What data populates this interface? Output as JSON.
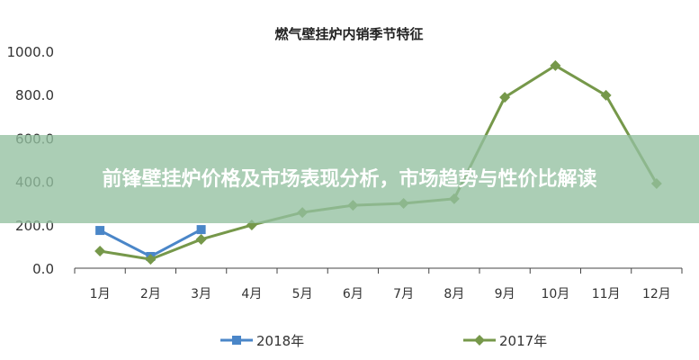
{
  "chart_data": {
    "type": "line",
    "title": "燃气壁挂炉内销季节特征",
    "categories": [
      "1月",
      "2月",
      "3月",
      "4月",
      "5月",
      "6月",
      "7月",
      "8月",
      "9月",
      "10月",
      "11月",
      "12月"
    ],
    "series": [
      {
        "name": "2018年",
        "color": "#4a86c8",
        "marker": "square",
        "values": [
          174,
          54,
          178,
          null,
          null,
          null,
          null,
          null,
          null,
          null,
          null,
          null
        ]
      },
      {
        "name": "2017年",
        "color": "#76984a",
        "marker": "diamond",
        "values": [
          79,
          41,
          133,
          199,
          257,
          290,
          299,
          320,
          788,
          934,
          797,
          390
        ]
      }
    ],
    "yticks": [
      "0.0",
      "200.0",
      "400.0",
      "600.0",
      "800.0",
      "1000.0"
    ],
    "ylim": [
      0,
      1000
    ],
    "grid": false,
    "legend": "bottom"
  },
  "banner": {
    "text": "前锋壁挂炉价格及市场表现分析，市场趋势与性价比解读"
  }
}
